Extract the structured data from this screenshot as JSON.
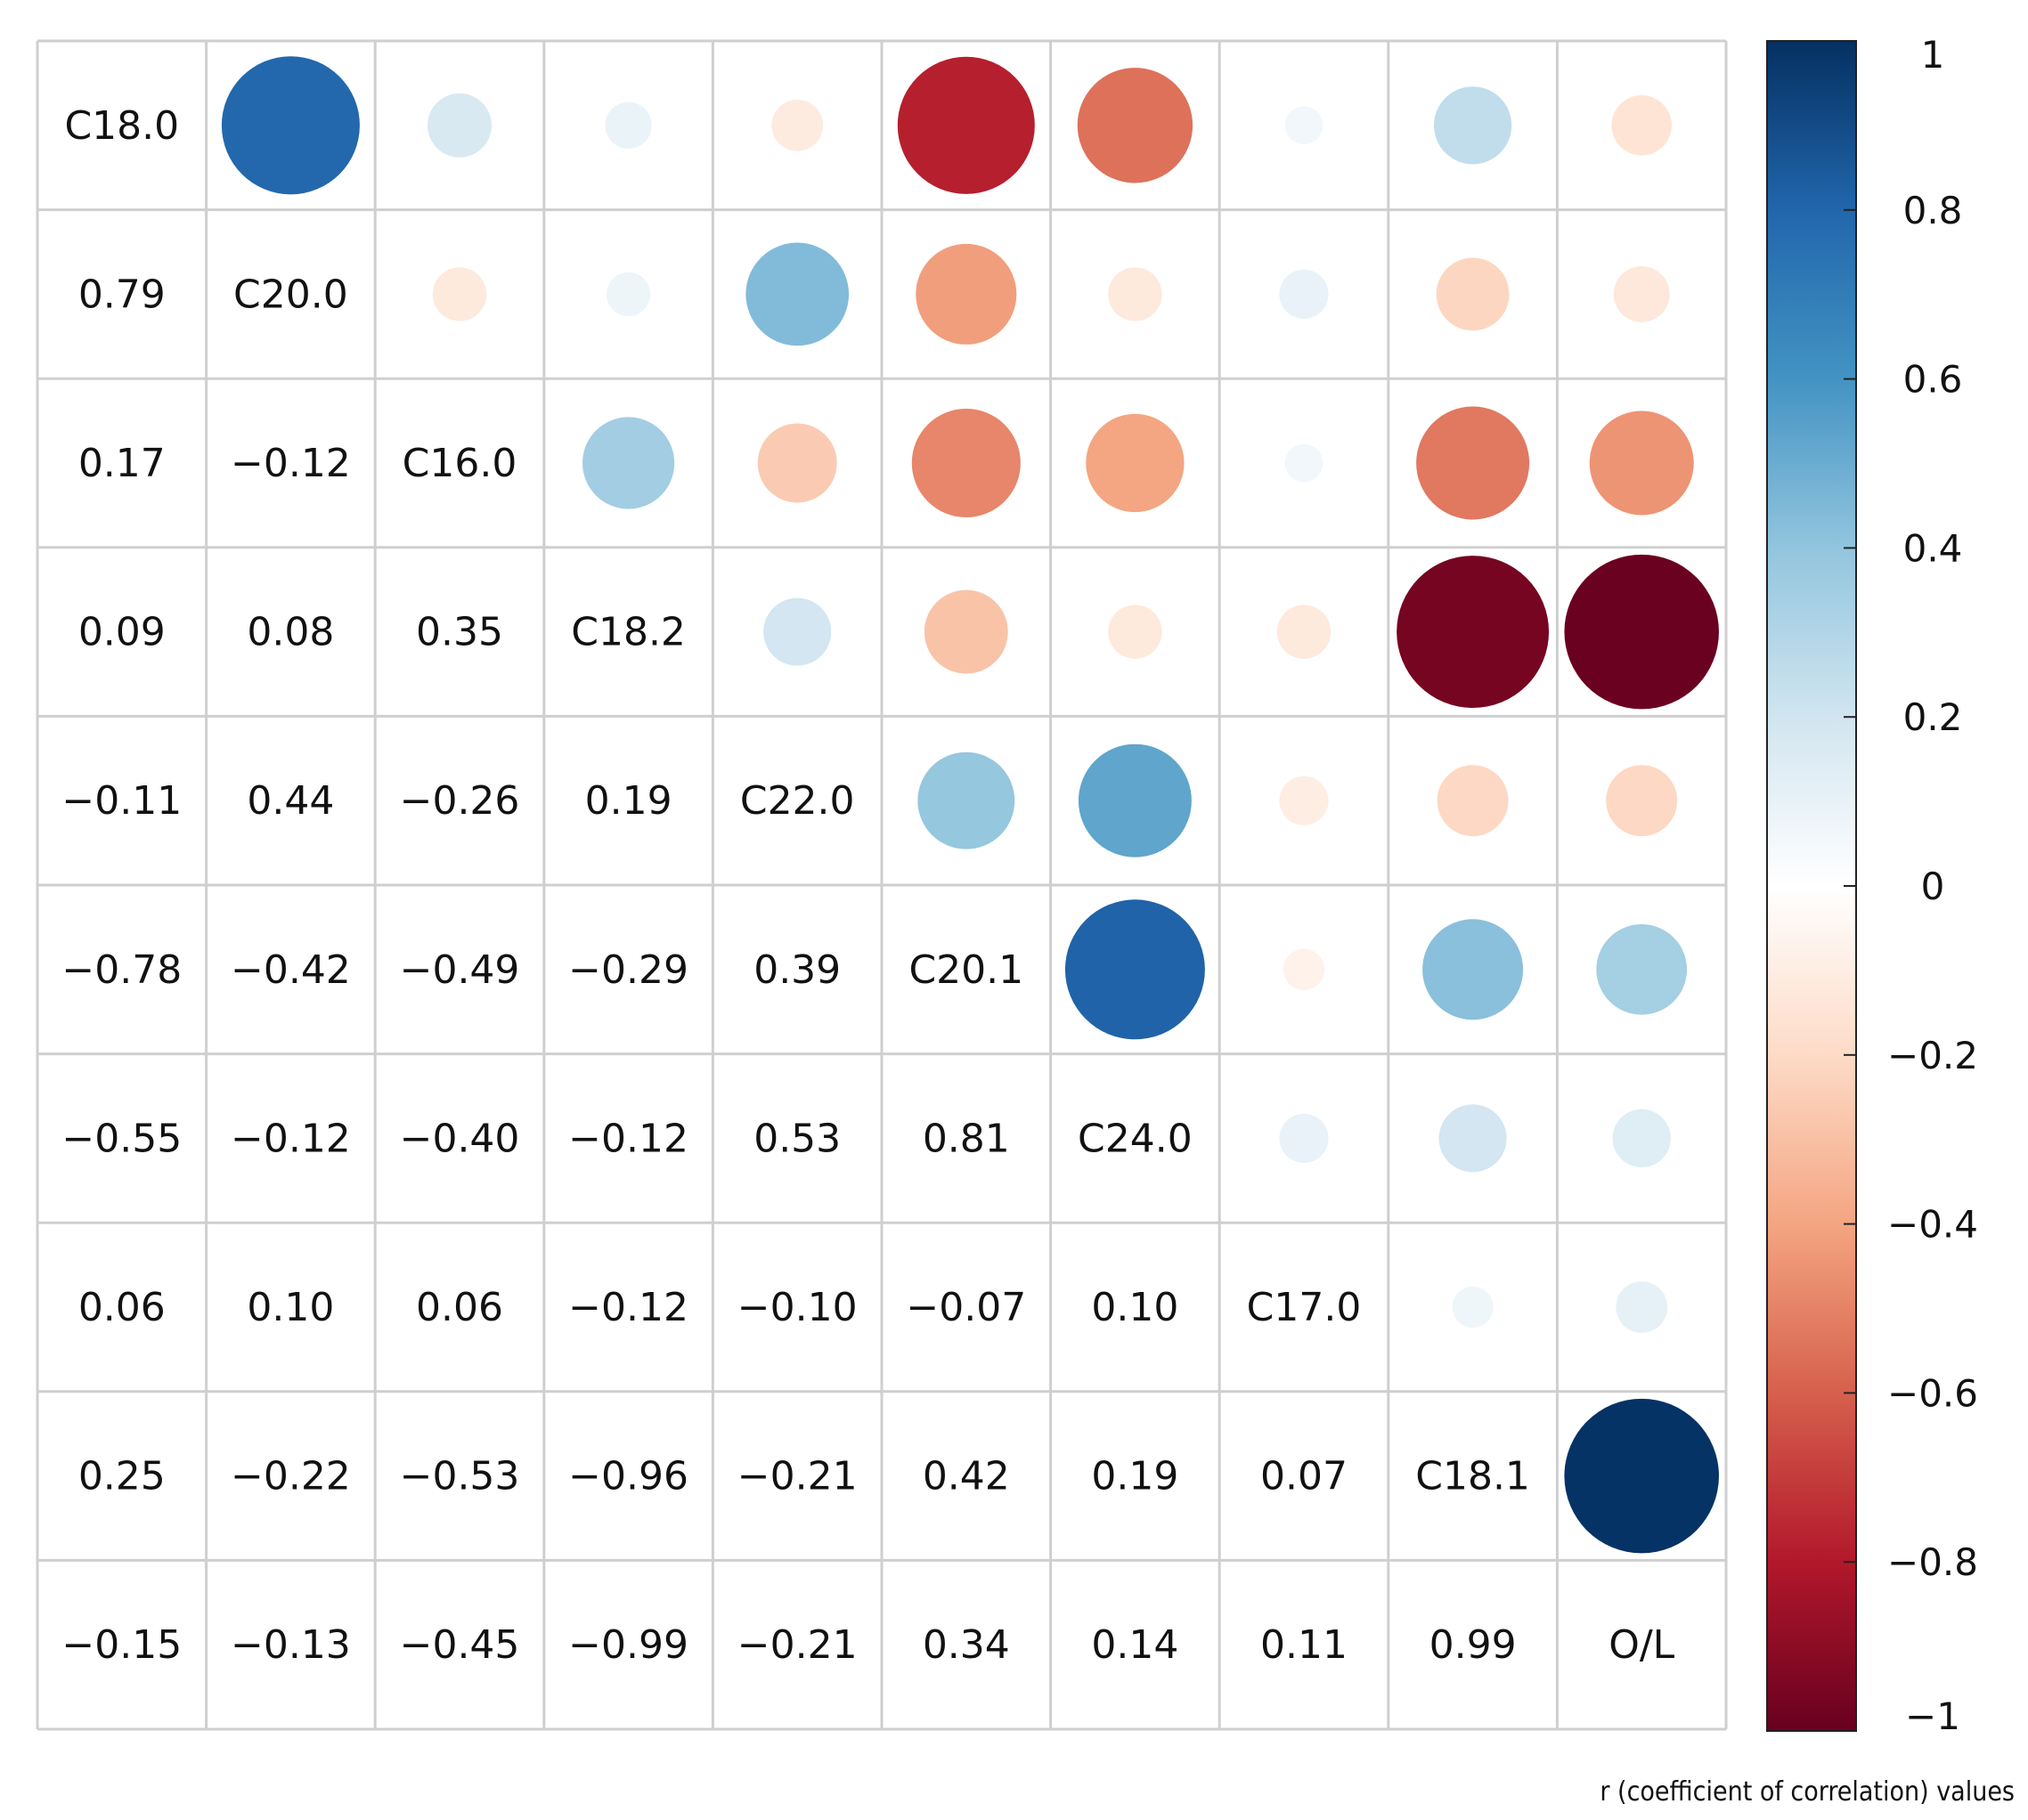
{
  "chart_data": {
    "type": "heatmap",
    "subtype": "correlation-matrix (lower: numbers, diagonal: names, upper: circles)",
    "variables": [
      "C18.0",
      "C20.0",
      "C16.0",
      "C18.2",
      "C22.0",
      "C20.1",
      "C24.0",
      "C17.0",
      "C18.1",
      "O/L"
    ],
    "matrix": [
      [
        1,
        0.79,
        0.17,
        0.09,
        -0.11,
        -0.78,
        -0.55,
        0.06,
        0.25,
        -0.15
      ],
      [
        0.79,
        1,
        -0.12,
        0.08,
        0.44,
        -0.42,
        -0.12,
        0.1,
        -0.22,
        -0.13
      ],
      [
        0.17,
        -0.12,
        1,
        0.35,
        -0.26,
        -0.49,
        -0.4,
        0.06,
        -0.53,
        -0.45
      ],
      [
        0.09,
        0.08,
        0.35,
        1,
        0.19,
        -0.29,
        -0.12,
        -0.12,
        -0.96,
        -0.99
      ],
      [
        -0.11,
        0.44,
        -0.26,
        0.19,
        1,
        0.39,
        0.53,
        -0.1,
        -0.21,
        -0.21
      ],
      [
        -0.78,
        -0.42,
        -0.49,
        -0.29,
        0.39,
        1,
        0.81,
        -0.07,
        0.42,
        0.34
      ],
      [
        -0.55,
        -0.12,
        -0.4,
        -0.12,
        0.53,
        0.81,
        1,
        0.1,
        0.19,
        0.14
      ],
      [
        0.06,
        0.1,
        0.06,
        -0.12,
        -0.1,
        -0.07,
        0.1,
        1,
        0.07,
        0.11
      ],
      [
        0.25,
        -0.22,
        -0.53,
        -0.96,
        -0.21,
        0.42,
        0.19,
        0.07,
        1,
        0.99
      ],
      [
        -0.15,
        -0.13,
        -0.45,
        -0.99,
        -0.21,
        0.34,
        0.14,
        0.11,
        0.99,
        1
      ]
    ],
    "lower_labels": [
      [],
      [
        "0.79"
      ],
      [
        "0.17",
        "−0.12"
      ],
      [
        "0.09",
        "0.08",
        "0.35"
      ],
      [
        "−0.11",
        "0.44",
        "−0.26",
        "0.19"
      ],
      [
        "−0.78",
        "−0.42",
        "−0.49",
        "−0.29",
        "0.39"
      ],
      [
        "−0.55",
        "−0.12",
        "−0.40",
        "−0.12",
        "0.53",
        "0.81"
      ],
      [
        "0.06",
        "0.10",
        "0.06",
        "−0.12",
        "−0.10",
        "−0.07",
        "0.10"
      ],
      [
        "0.25",
        "−0.22",
        "−0.53",
        "−0.96",
        "−0.21",
        "0.42",
        "0.19",
        "0.07"
      ],
      [
        "−0.15",
        "−0.13",
        "−0.45",
        "−0.99",
        "−0.21",
        "0.34",
        "0.14",
        "0.11",
        "0.99"
      ]
    ],
    "colorbar": {
      "range": [
        -1,
        1
      ],
      "ticks": [
        1,
        0.8,
        0.6,
        0.4,
        0.2,
        0,
        -0.2,
        -0.4,
        -0.6,
        -0.8,
        -1
      ],
      "tick_labels": [
        "1",
        "0.8",
        "0.6",
        "0.4",
        "0.2",
        "0",
        "−0.2",
        "−0.4",
        "−0.6",
        "−0.8",
        "−1"
      ],
      "palette": [
        "#67001f",
        "#b2182b",
        "#d6604d",
        "#f4a582",
        "#fddbc7",
        "#ffffff",
        "#d1e5f0",
        "#92c5de",
        "#4393c3",
        "#2166ac",
        "#053061"
      ],
      "position": "right"
    },
    "caption": "r (coefficient of correlation) values",
    "grid": true
  }
}
